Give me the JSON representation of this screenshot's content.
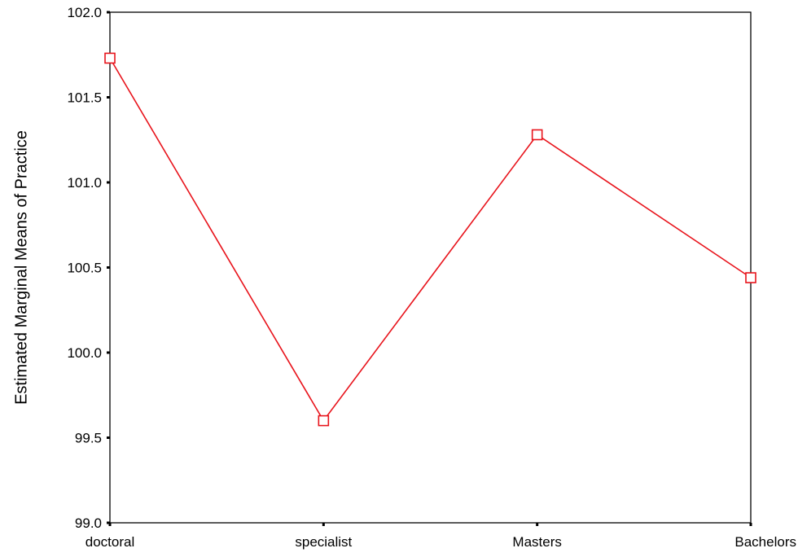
{
  "chart_data": {
    "type": "line",
    "title": "",
    "xlabel": "",
    "ylabel": "Estimated Marginal Means of Practice",
    "categories": [
      "doctoral",
      "specialist",
      "Masters",
      "Bachelors"
    ],
    "series": [
      {
        "values": [
          101.73,
          99.6,
          101.28,
          100.44
        ],
        "color": "#e8141c",
        "marker": "open-square"
      }
    ],
    "ylim": [
      99.0,
      102.0
    ],
    "yticks": [
      "99.0",
      "99.5",
      "100.0",
      "100.5",
      "101.0",
      "101.5",
      "102.0"
    ],
    "grid": false,
    "legend": "none"
  }
}
